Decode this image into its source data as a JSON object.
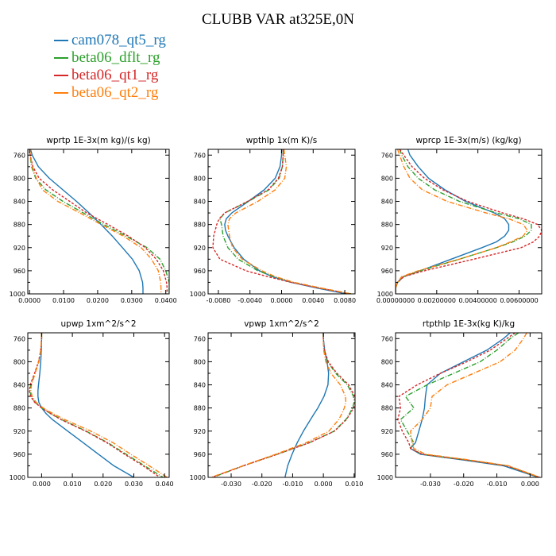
{
  "title": "CLUBB VAR at325E,0N",
  "legend": [
    {
      "name": "cam078_qt5_rg",
      "color": "#1f77b4"
    },
    {
      "name": "beta06_dflt_rg",
      "color": "#2ca02c"
    },
    {
      "name": "beta06_qt1_rg",
      "color": "#d62728"
    },
    {
      "name": "beta06_qt2_rg",
      "color": "#ff7f0e"
    }
  ],
  "chart_data": [
    {
      "type": "line",
      "title": "wprtp  1E-3x(m kg)/(s kg)",
      "xlim": [
        -0.0005,
        0.041
      ],
      "ylim": [
        1000,
        750
      ],
      "xticks": [
        0.0,
        0.01,
        0.02,
        0.03,
        0.04
      ],
      "xtick_labels": [
        "0.0000",
        "0.0100",
        "0.0200",
        "0.0300",
        "0.0400"
      ],
      "yticks": [
        760,
        800,
        840,
        880,
        920,
        960,
        1000
      ],
      "ytick_labels": [
        "760",
        "800",
        "840",
        "880",
        "920",
        "960",
        "1000"
      ],
      "y": [
        750,
        760,
        780,
        800,
        820,
        840,
        860,
        880,
        900,
        920,
        940,
        960,
        980,
        990,
        1000
      ],
      "series": [
        {
          "name": "cam078_qt5_rg",
          "style": "solid",
          "values": [
            0.0003,
            0.0008,
            0.0026,
            0.0058,
            0.0098,
            0.0138,
            0.0175,
            0.021,
            0.0243,
            0.0273,
            0.0302,
            0.0322,
            0.0332,
            0.0333,
            0.0333
          ]
        },
        {
          "name": "beta06_dflt_rg",
          "style": "dashdot",
          "values": [
            0.0001,
            0.0002,
            0.0006,
            0.0018,
            0.0048,
            0.0098,
            0.0158,
            0.0218,
            0.0283,
            0.0345,
            0.0383,
            0.04,
            0.041,
            0.041,
            0.041
          ]
        },
        {
          "name": "beta06_qt1_rg",
          "style": "dashed",
          "values": [
            0.0001,
            0.0002,
            0.001,
            0.0028,
            0.0068,
            0.0118,
            0.0168,
            0.023,
            0.029,
            0.034,
            0.0372,
            0.0393,
            0.0402,
            0.0404,
            0.0404
          ]
        },
        {
          "name": "beta06_qt2_rg",
          "style": "dashdot",
          "values": [
            0.0001,
            0.0002,
            0.0008,
            0.002,
            0.0038,
            0.0083,
            0.0148,
            0.021,
            0.0275,
            0.0328,
            0.0358,
            0.0378,
            0.0385,
            0.0386,
            0.0386
          ]
        }
      ]
    },
    {
      "type": "line",
      "title": "wpthlp  1x(m K)/s",
      "xlim": [
        -0.0093,
        0.0093
      ],
      "ylim": [
        1000,
        750
      ],
      "xticks": [
        -0.008,
        -0.004,
        0.0,
        0.004,
        0.008
      ],
      "xtick_labels": [
        "-0.0080",
        "-0.0040",
        "0.0000",
        "0.0040",
        "0.0080"
      ],
      "yticks": [
        760,
        800,
        840,
        880,
        920,
        960,
        1000
      ],
      "ytick_labels": [
        "760",
        "800",
        "840",
        "880",
        "920",
        "960",
        "1000"
      ],
      "y": [
        750,
        760,
        780,
        800,
        820,
        840,
        860,
        870,
        880,
        890,
        900,
        920,
        940,
        960,
        970,
        980,
        990,
        1000
      ],
      "series": [
        {
          "name": "cam078_qt5_rg",
          "style": "solid",
          "values": [
            0.0,
            0.0,
            -0.0002,
            -0.0008,
            -0.0022,
            -0.0042,
            -0.0063,
            -0.007,
            -0.0072,
            -0.0071,
            -0.0068,
            -0.006,
            -0.0048,
            -0.0028,
            -0.0012,
            0.0012,
            0.0045,
            0.0082
          ]
        },
        {
          "name": "beta06_dflt_rg",
          "style": "dashdot",
          "values": [
            0.0002,
            0.0002,
            0.0001,
            -0.0003,
            -0.0016,
            -0.0042,
            -0.0072,
            -0.0078,
            -0.0076,
            -0.0075,
            -0.0074,
            -0.0068,
            -0.0055,
            -0.003,
            -0.001,
            0.0015,
            0.005,
            0.0088
          ]
        },
        {
          "name": "beta06_qt1_rg",
          "style": "dashed",
          "values": [
            0.0002,
            0.0002,
            0.0001,
            -0.0004,
            -0.0017,
            -0.0043,
            -0.0072,
            -0.0079,
            -0.0082,
            -0.0084,
            -0.0086,
            -0.0087,
            -0.0078,
            -0.0045,
            -0.0018,
            0.0012,
            0.0048,
            0.0087
          ]
        },
        {
          "name": "beta06_qt2_rg",
          "style": "dashdot",
          "values": [
            0.0003,
            0.0004,
            0.0006,
            0.0004,
            -0.0008,
            -0.003,
            -0.0058,
            -0.0066,
            -0.0068,
            -0.0067,
            -0.0066,
            -0.0062,
            -0.005,
            -0.0025,
            -0.0008,
            0.0015,
            0.005,
            0.0088
          ]
        }
      ]
    },
    {
      "type": "line",
      "title": "wprcp  1E-3x(m/s) (kg/kg)",
      "xlim": [
        0,
        0.0071
      ],
      "ylim": [
        1000,
        750
      ],
      "xticks": [
        0.0,
        0.002,
        0.004,
        0.006
      ],
      "xtick_labels": [
        "0.00000000",
        "0.00200000",
        "0.00400000",
        "0.00600000"
      ],
      "yticks": [
        760,
        800,
        840,
        880,
        920,
        960,
        1000
      ],
      "ytick_labels": [
        "760",
        "800",
        "840",
        "880",
        "920",
        "960",
        "1000"
      ],
      "y": [
        750,
        760,
        780,
        800,
        820,
        840,
        860,
        870,
        880,
        890,
        900,
        910,
        920,
        940,
        960,
        970,
        980,
        990,
        1000
      ],
      "series": [
        {
          "name": "cam078_qt5_rg",
          "style": "solid",
          "values": [
            0.0006,
            0.0007,
            0.0011,
            0.0016,
            0.0024,
            0.0034,
            0.0048,
            0.0053,
            0.0055,
            0.0055,
            0.0053,
            0.0049,
            0.0042,
            0.0027,
            0.0012,
            0.0004,
            0.0001,
            0.0,
            0.0
          ]
        },
        {
          "name": "beta06_dflt_rg",
          "style": "dashdot",
          "values": [
            0.0002,
            0.0003,
            0.0006,
            0.0011,
            0.0019,
            0.0031,
            0.0049,
            0.006,
            0.0066,
            0.0066,
            0.0063,
            0.0057,
            0.0049,
            0.0031,
            0.0012,
            0.0004,
            0.0001,
            0.0,
            0.0
          ]
        },
        {
          "name": "beta06_qt1_rg",
          "style": "dashed",
          "values": [
            0.0002,
            0.0004,
            0.0008,
            0.0014,
            0.0023,
            0.0035,
            0.0052,
            0.0062,
            0.0069,
            0.0071,
            0.007,
            0.0067,
            0.0061,
            0.0038,
            0.0014,
            0.0004,
            0.0001,
            0.0,
            0.0
          ]
        },
        {
          "name": "beta06_qt2_rg",
          "style": "dashdot",
          "values": [
            0.0001,
            0.0002,
            0.0004,
            0.0007,
            0.0013,
            0.0025,
            0.0044,
            0.0055,
            0.0062,
            0.0064,
            0.0062,
            0.0056,
            0.0049,
            0.0031,
            0.0011,
            0.0003,
            0.0001,
            0.0,
            0.0
          ]
        }
      ]
    },
    {
      "type": "line",
      "title": "upwp  1xm^2/s^2",
      "xlim": [
        -0.0045,
        0.0415
      ],
      "ylim": [
        1000,
        750
      ],
      "xticks": [
        0.0,
        0.01,
        0.02,
        0.03,
        0.04
      ],
      "xtick_labels": [
        "0.000",
        "0.010",
        "0.020",
        "0.030",
        "0.040"
      ],
      "yticks": [
        760,
        800,
        840,
        880,
        920,
        960,
        1000
      ],
      "ytick_labels": [
        "760",
        "800",
        "840",
        "880",
        "920",
        "960",
        "1000"
      ],
      "y": [
        750,
        760,
        780,
        800,
        820,
        840,
        850,
        860,
        870,
        880,
        890,
        900,
        920,
        940,
        960,
        980,
        1000
      ],
      "series": [
        {
          "name": "cam078_qt5_rg",
          "style": "solid",
          "values": [
            0.0,
            0.0,
            -0.0001,
            -0.0003,
            -0.0006,
            -0.001,
            -0.0012,
            -0.0012,
            -0.0009,
            0.0,
            0.0015,
            0.0035,
            0.0085,
            0.0135,
            0.0185,
            0.0235,
            0.03
          ]
        },
        {
          "name": "beta06_dflt_rg",
          "style": "dashdot",
          "values": [
            0.0,
            0.0,
            -0.0003,
            -0.0009,
            -0.0022,
            -0.0035,
            -0.0038,
            -0.0034,
            -0.0022,
            0.0,
            0.003,
            0.0065,
            0.0145,
            0.0215,
            0.0275,
            0.0335,
            0.0395
          ]
        },
        {
          "name": "beta06_qt1_rg",
          "style": "dashed",
          "values": [
            0.0,
            0.0,
            -0.0003,
            -0.001,
            -0.0023,
            -0.0037,
            -0.004,
            -0.0036,
            -0.0023,
            0.0,
            0.003,
            0.0063,
            0.0143,
            0.0212,
            0.027,
            0.033,
            0.0385
          ]
        },
        {
          "name": "beta06_qt2_rg",
          "style": "dashdot",
          "values": [
            0.0,
            0.0,
            -0.0003,
            -0.0009,
            -0.0021,
            -0.0033,
            -0.0035,
            -0.0031,
            -0.0018,
            0.0005,
            0.0038,
            0.0075,
            0.016,
            0.0232,
            0.029,
            0.035,
            0.0408
          ]
        }
      ]
    },
    {
      "type": "line",
      "title": "vpwp  1xm^2/s^2",
      "xlim": [
        -0.0375,
        0.0103
      ],
      "ylim": [
        1000,
        750
      ],
      "xticks": [
        -0.03,
        -0.02,
        -0.01,
        0.0,
        0.01
      ],
      "xtick_labels": [
        "-0.030",
        "-0.020",
        "-0.010",
        "0.000",
        "0.010"
      ],
      "yticks": [
        760,
        800,
        840,
        880,
        920,
        960,
        1000
      ],
      "ytick_labels": [
        "760",
        "800",
        "840",
        "880",
        "920",
        "960",
        "1000"
      ],
      "y": [
        750,
        760,
        780,
        800,
        820,
        840,
        860,
        870,
        880,
        890,
        900,
        920,
        940,
        960,
        980,
        1000
      ],
      "series": [
        {
          "name": "cam078_qt5_rg",
          "style": "solid",
          "values": [
            0.0,
            0.0,
            0.0004,
            0.0012,
            0.0017,
            0.0015,
            0.0002,
            -0.0008,
            -0.0018,
            -0.003,
            -0.0042,
            -0.0065,
            -0.0085,
            -0.0102,
            -0.0116,
            -0.0125
          ]
        },
        {
          "name": "beta06_dflt_rg",
          "style": "dashdot",
          "values": [
            0.0,
            0.0,
            0.0002,
            0.0014,
            0.004,
            0.0078,
            0.0098,
            0.01,
            0.0095,
            0.0085,
            0.0073,
            0.0035,
            -0.0045,
            -0.015,
            -0.026,
            -0.036
          ]
        },
        {
          "name": "beta06_qt1_rg",
          "style": "dashed",
          "values": [
            0.0,
            0.0,
            0.0003,
            0.0016,
            0.0044,
            0.0082,
            0.0102,
            0.0104,
            0.0098,
            0.0087,
            0.0075,
            0.0036,
            -0.0045,
            -0.015,
            -0.026,
            -0.0362
          ]
        },
        {
          "name": "beta06_qt2_rg",
          "style": "dashdot",
          "values": [
            0.0,
            0.0,
            0.0001,
            0.0008,
            0.0025,
            0.0055,
            0.0072,
            0.0073,
            0.0068,
            0.006,
            0.005,
            0.0018,
            -0.0055,
            -0.0155,
            -0.0262,
            -0.0365
          ]
        }
      ]
    },
    {
      "type": "line",
      "title": "rtpthlp  1E-3x(kg K)/kg",
      "xlim": [
        -0.0405,
        0.0035
      ],
      "ylim": [
        1000,
        750
      ],
      "xticks": [
        -0.03,
        -0.02,
        -0.01,
        0.0
      ],
      "xtick_labels": [
        "-0.030",
        "-0.020",
        "-0.010",
        "0.000"
      ],
      "yticks": [
        760,
        800,
        840,
        880,
        920,
        960,
        1000
      ],
      "ytick_labels": [
        "760",
        "800",
        "840",
        "880",
        "920",
        "960",
        "1000"
      ],
      "y": [
        750,
        760,
        780,
        800,
        820,
        840,
        860,
        880,
        900,
        920,
        940,
        950,
        960,
        970,
        980,
        1000
      ],
      "series": [
        {
          "name": "cam078_qt5_rg",
          "style": "solid",
          "values": [
            -0.006,
            -0.008,
            -0.013,
            -0.02,
            -0.027,
            -0.031,
            -0.0315,
            -0.0318,
            -0.0325,
            -0.0335,
            -0.0345,
            -0.036,
            -0.033,
            -0.02,
            -0.008,
            0.0025
          ]
        },
        {
          "name": "beta06_dflt_rg",
          "style": "dashdot",
          "values": [
            -0.0035,
            -0.006,
            -0.01,
            -0.015,
            -0.023,
            -0.031,
            -0.0375,
            -0.035,
            -0.039,
            -0.037,
            -0.035,
            -0.036,
            -0.0325,
            -0.019,
            -0.007,
            0.0028
          ]
        },
        {
          "name": "beta06_qt1_rg",
          "style": "dashed",
          "values": [
            -0.0045,
            -0.007,
            -0.012,
            -0.019,
            -0.027,
            -0.034,
            -0.0395,
            -0.039,
            -0.0398,
            -0.0385,
            -0.0365,
            -0.036,
            -0.0325,
            -0.019,
            -0.007,
            0.0028
          ]
        },
        {
          "name": "beta06_qt2_rg",
          "style": "dashdot",
          "values": [
            -0.001,
            -0.002,
            -0.0045,
            -0.009,
            -0.017,
            -0.025,
            -0.0295,
            -0.03,
            -0.0325,
            -0.036,
            -0.0355,
            -0.035,
            -0.0315,
            -0.018,
            -0.0065,
            0.003
          ]
        }
      ]
    }
  ]
}
